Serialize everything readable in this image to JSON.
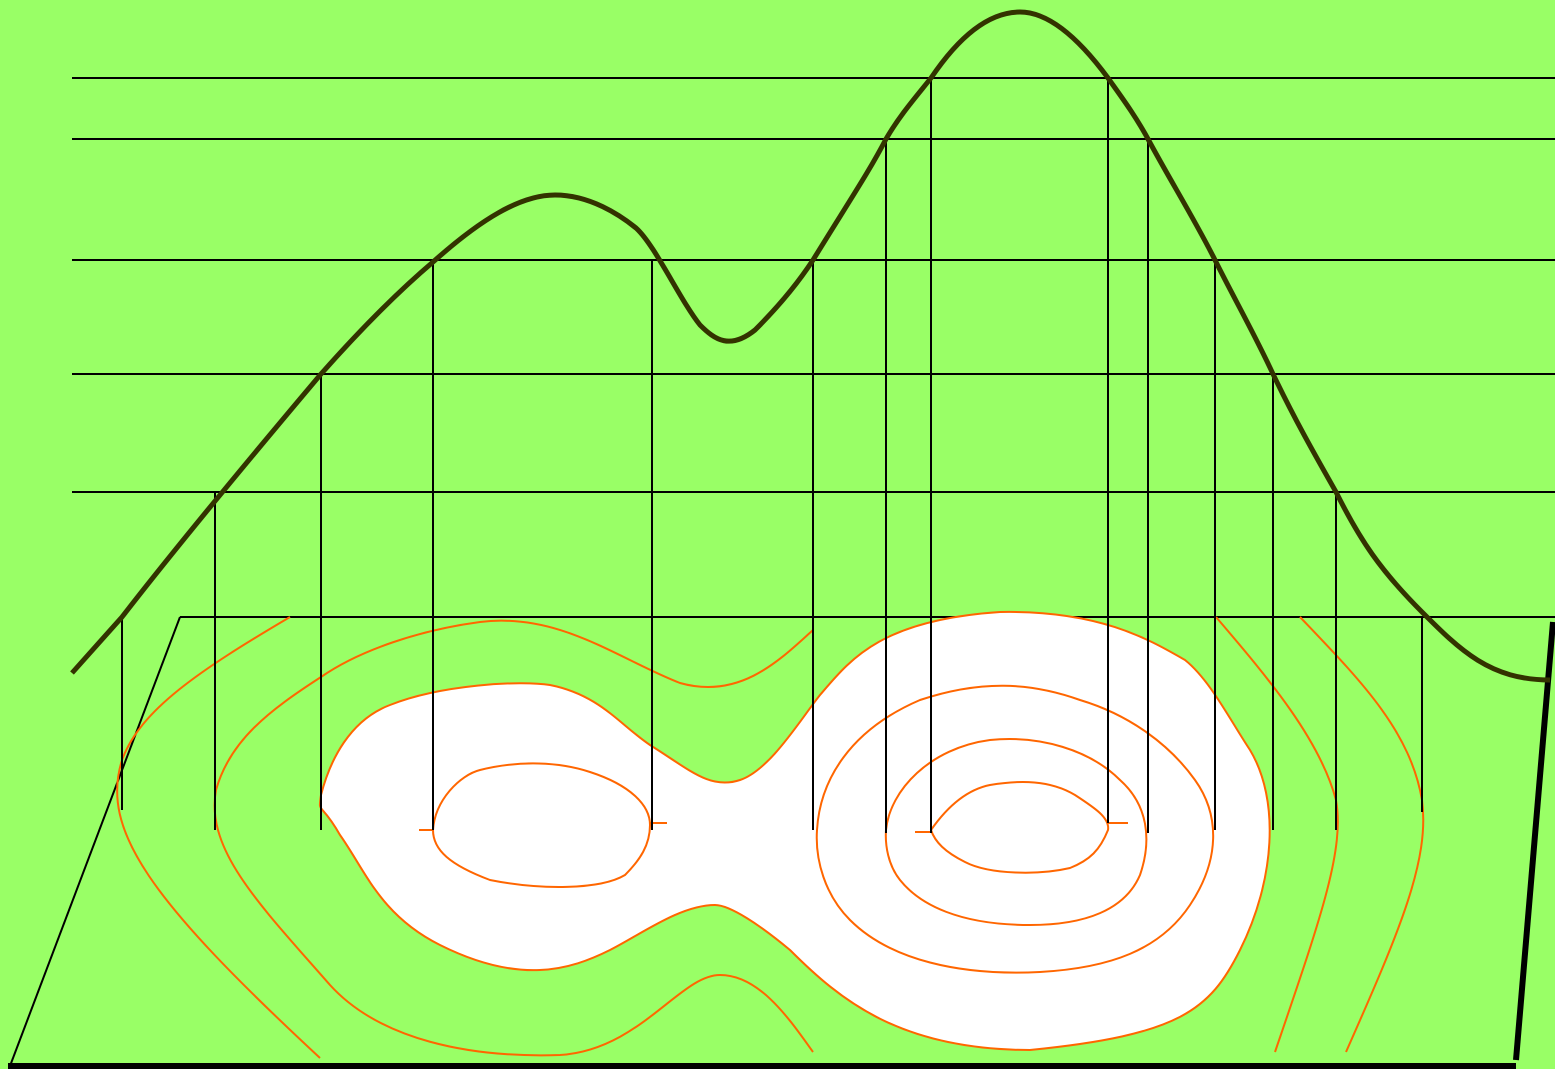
{
  "colors": {
    "background": "#99ff66",
    "profile_curve": "#333300",
    "contour_line": "#ff6600",
    "guide_line": "#000000",
    "fill": "#ffffff"
  },
  "diagram": {
    "type": "contour-to-profile projection",
    "labels": [],
    "height_levels": 5,
    "peaks": 2
  }
}
